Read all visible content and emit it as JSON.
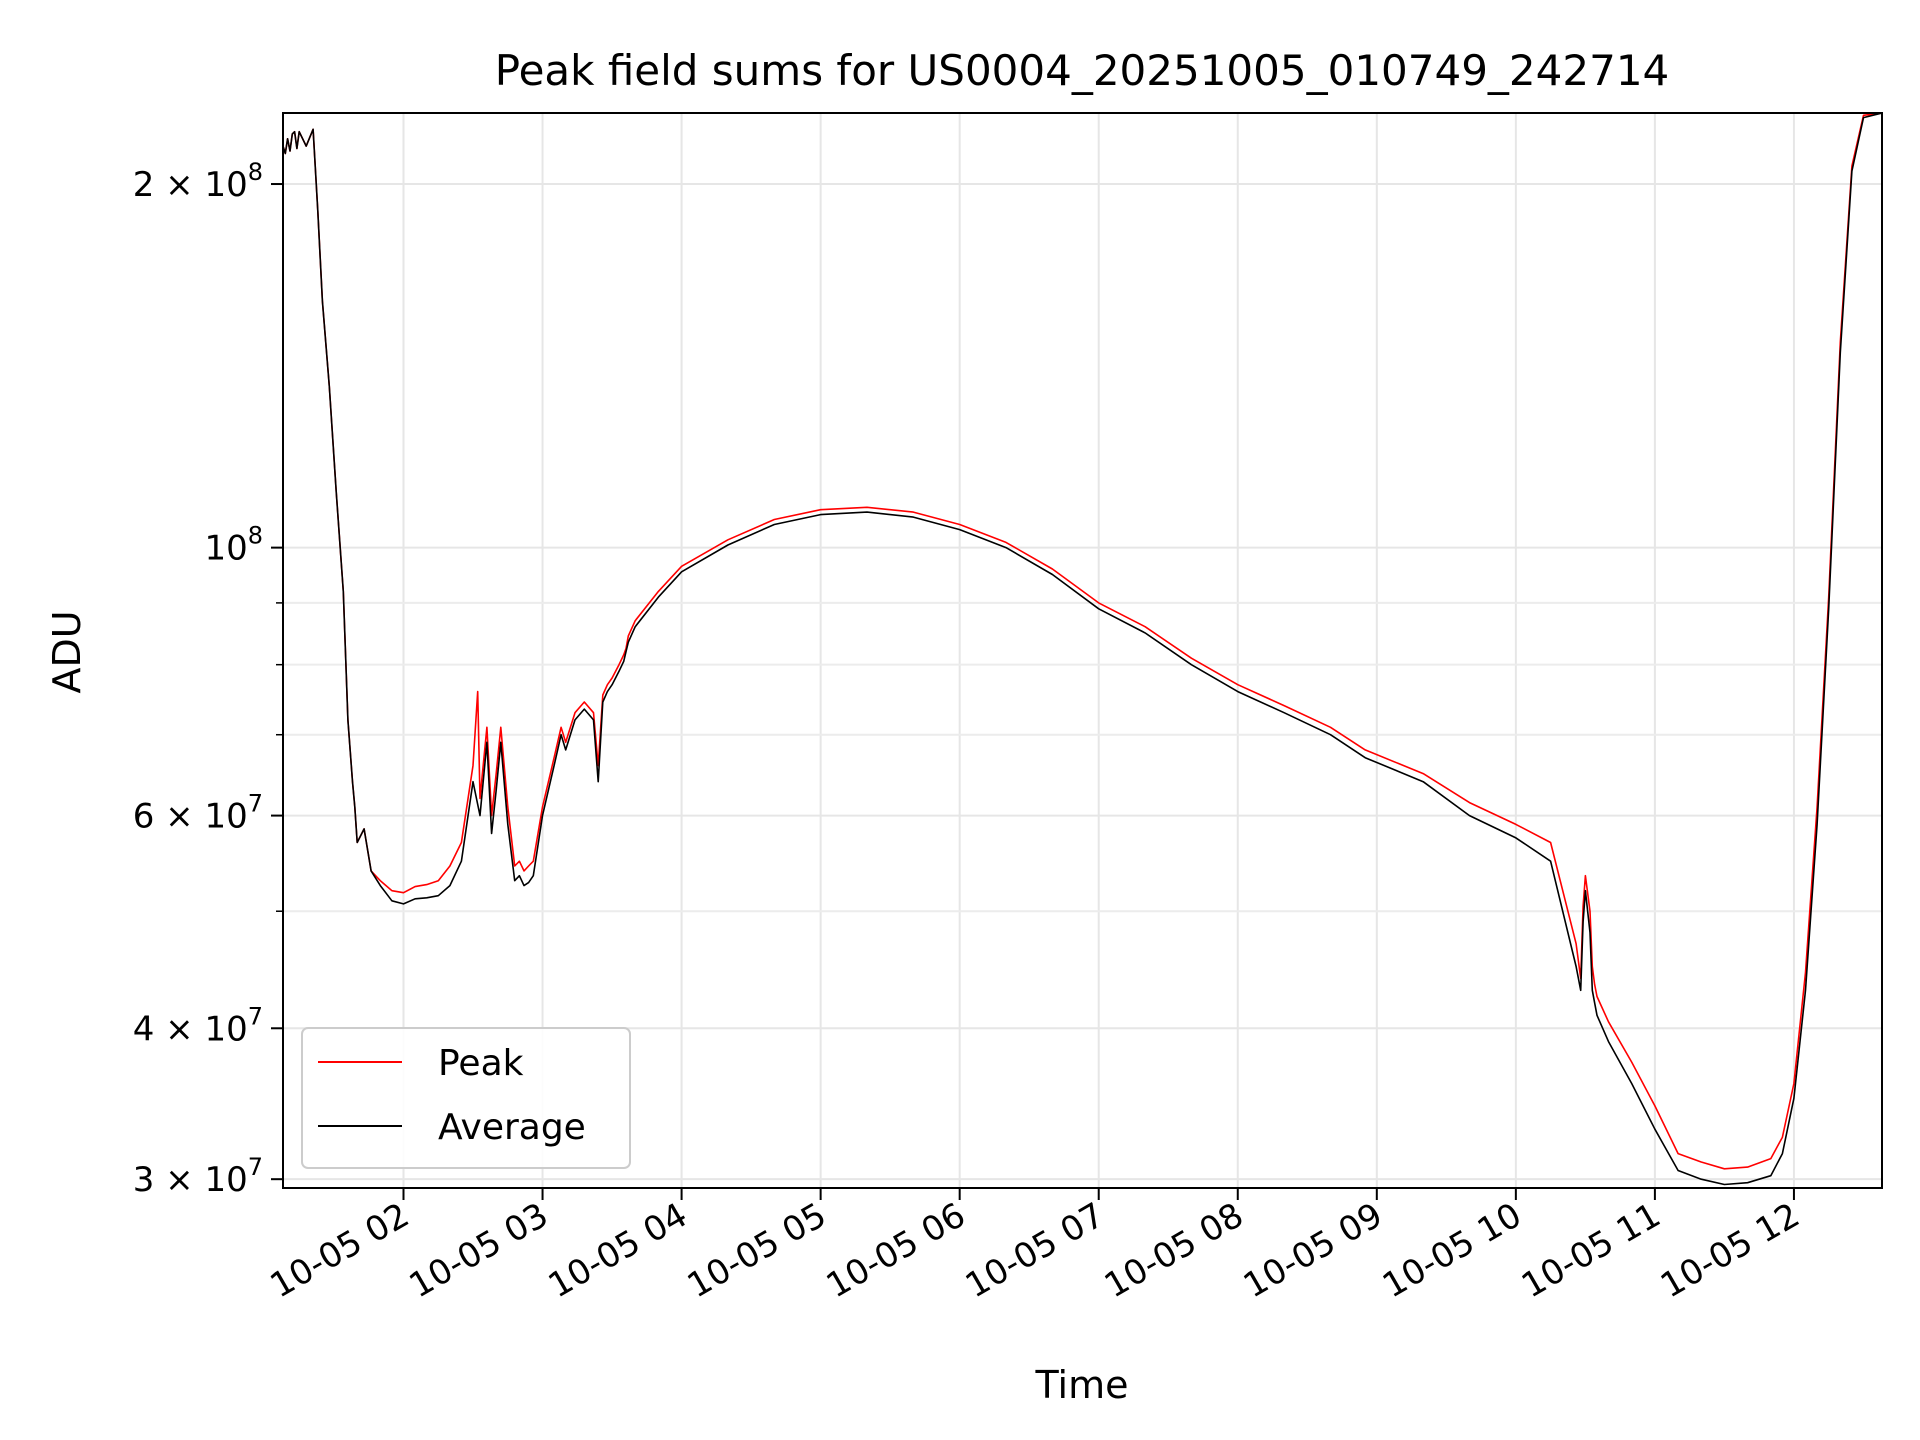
{
  "chart_data": {
    "type": "line",
    "title": "Peak field sums for US0004_20251005_010749_242714",
    "xlabel": "Time",
    "ylabel": "ADU",
    "y_scale": "log",
    "xlim": [
      "2025-10-05 01:08",
      "2025-10-05 12:38"
    ],
    "ylim": [
      29500000,
      229000000
    ],
    "grid": true,
    "legend": {
      "position": "lower-left",
      "entries": [
        "Peak",
        "Average"
      ]
    },
    "x_ticks": [
      "10-05 02",
      "10-05 03",
      "10-05 04",
      "10-05 05",
      "10-05 06",
      "10-05 07",
      "10-05 08",
      "10-05 09",
      "10-05 10",
      "10-05 11",
      "10-05 12"
    ],
    "y_major_ticks": [
      {
        "value": 200000000,
        "mant": "2",
        "exp": "8"
      },
      {
        "value": 100000000,
        "mant": "",
        "exp": "8"
      },
      {
        "value": 60000000,
        "mant": "6",
        "exp": "7"
      },
      {
        "value": 40000000,
        "mant": "4",
        "exp": "7"
      },
      {
        "value": 30000000,
        "mant": "3",
        "exp": "7"
      }
    ],
    "y_minor_grid": [
      50000000,
      70000000,
      80000000,
      90000000
    ],
    "colors": {
      "Peak": "#ff0000",
      "Average": "#000000"
    },
    "series": [
      {
        "name": "Average",
        "x": [
          "2025-10-05 01:08",
          "2025-10-05 01:09",
          "2025-10-05 01:10",
          "2025-10-05 01:11",
          "2025-10-05 01:12",
          "2025-10-05 01:13",
          "2025-10-05 01:14",
          "2025-10-05 01:15",
          "2025-10-05 01:18",
          "2025-10-05 01:21",
          "2025-10-05 01:23",
          "2025-10-05 01:25",
          "2025-10-05 01:28",
          "2025-10-05 01:31",
          "2025-10-05 01:34",
          "2025-10-05 01:36",
          "2025-10-05 01:38",
          "2025-10-05 01:39",
          "2025-10-05 01:40",
          "2025-10-05 01:43",
          "2025-10-05 01:46",
          "2025-10-05 01:50",
          "2025-10-05 01:55",
          "2025-10-05 02:00",
          "2025-10-05 02:05",
          "2025-10-05 02:10",
          "2025-10-05 02:15",
          "2025-10-05 02:20",
          "2025-10-05 02:25",
          "2025-10-05 02:30",
          "2025-10-05 02:33",
          "2025-10-05 02:36",
          "2025-10-05 02:38",
          "2025-10-05 02:40",
          "2025-10-05 02:42",
          "2025-10-05 02:45",
          "2025-10-05 02:48",
          "2025-10-05 02:50",
          "2025-10-05 02:52",
          "2025-10-05 02:54",
          "2025-10-05 02:56",
          "2025-10-05 03:00",
          "2025-10-05 03:05",
          "2025-10-05 03:08",
          "2025-10-05 03:10",
          "2025-10-05 03:14",
          "2025-10-05 03:18",
          "2025-10-05 03:22",
          "2025-10-05 03:24",
          "2025-10-05 03:26",
          "2025-10-05 03:28",
          "2025-10-05 03:30",
          "2025-10-05 03:33",
          "2025-10-05 03:35",
          "2025-10-05 03:36",
          "2025-10-05 03:37",
          "2025-10-05 03:40",
          "2025-10-05 03:50",
          "2025-10-05 04:00",
          "2025-10-05 04:20",
          "2025-10-05 04:40",
          "2025-10-05 05:00",
          "2025-10-05 05:20",
          "2025-10-05 05:40",
          "2025-10-05 06:00",
          "2025-10-05 06:20",
          "2025-10-05 06:40",
          "2025-10-05 07:00",
          "2025-10-05 07:20",
          "2025-10-05 07:40",
          "2025-10-05 08:00",
          "2025-10-05 08:20",
          "2025-10-05 08:40",
          "2025-10-05 08:55",
          "2025-10-05 09:20",
          "2025-10-05 09:40",
          "2025-10-05 10:00",
          "2025-10-05 10:15",
          "2025-10-05 10:26",
          "2025-10-05 10:28",
          "2025-10-05 10:29",
          "2025-10-05 10:30",
          "2025-10-05 10:32",
          "2025-10-05 10:33",
          "2025-10-05 10:34",
          "2025-10-05 10:35",
          "2025-10-05 10:40",
          "2025-10-05 10:50",
          "2025-10-05 11:00",
          "2025-10-05 11:10",
          "2025-10-05 11:20",
          "2025-10-05 11:30",
          "2025-10-05 11:40",
          "2025-10-05 11:50",
          "2025-10-05 11:55",
          "2025-10-05 12:00",
          "2025-10-05 12:05",
          "2025-10-05 12:10",
          "2025-10-05 12:15",
          "2025-10-05 12:20",
          "2025-10-05 12:25",
          "2025-10-05 12:30",
          "2025-10-05 12:38"
        ],
        "y": [
          215000000,
          212000000,
          218000000,
          213000000,
          220000000,
          221000000,
          214000000,
          221000000,
          215000000,
          222000000,
          190000000,
          160000000,
          136000000,
          111000000,
          92000000,
          72000000,
          64000000,
          61000000,
          57000000,
          58500000,
          54000000,
          52500000,
          51000000,
          50700000,
          51200000,
          51300000,
          51500000,
          52500000,
          55000000,
          64000000,
          60000000,
          69000000,
          58000000,
          63000000,
          69000000,
          59000000,
          53000000,
          53500000,
          52500000,
          52800000,
          53500000,
          60000000,
          66000000,
          70000000,
          68000000,
          72000000,
          73500000,
          72000000,
          64000000,
          74500000,
          76000000,
          77000000,
          79000000,
          80500000,
          82000000,
          83500000,
          86000000,
          91000000,
          95500000,
          100500000,
          104500000,
          106500000,
          107000000,
          106000000,
          103500000,
          100000000,
          95000000,
          89000000,
          85000000,
          80000000,
          76000000,
          73000000,
          70000000,
          67000000,
          64000000,
          60000000,
          57500000,
          55000000,
          45000000,
          43000000,
          49000000,
          52000000,
          48000000,
          43000000,
          42000000,
          41000000,
          39000000,
          36000000,
          33000000,
          30500000,
          30000000,
          29700000,
          29800000,
          30200000,
          31500000,
          35000000,
          43000000,
          59000000,
          89000000,
          145000000,
          205000000,
          227000000,
          229000000
        ]
      },
      {
        "name": "Peak",
        "x": [
          "2025-10-05 01:08",
          "2025-10-05 01:09",
          "2025-10-05 01:10",
          "2025-10-05 01:11",
          "2025-10-05 01:12",
          "2025-10-05 01:13",
          "2025-10-05 01:14",
          "2025-10-05 01:15",
          "2025-10-05 01:18",
          "2025-10-05 01:21",
          "2025-10-05 01:23",
          "2025-10-05 01:25",
          "2025-10-05 01:28",
          "2025-10-05 01:31",
          "2025-10-05 01:34",
          "2025-10-05 01:36",
          "2025-10-05 01:38",
          "2025-10-05 01:39",
          "2025-10-05 01:40",
          "2025-10-05 01:43",
          "2025-10-05 01:46",
          "2025-10-05 01:50",
          "2025-10-05 01:55",
          "2025-10-05 02:00",
          "2025-10-05 02:05",
          "2025-10-05 02:10",
          "2025-10-05 02:15",
          "2025-10-05 02:20",
          "2025-10-05 02:25",
          "2025-10-05 02:30",
          "2025-10-05 02:32",
          "2025-10-05 02:33",
          "2025-10-05 02:36",
          "2025-10-05 02:38",
          "2025-10-05 02:40",
          "2025-10-05 02:42",
          "2025-10-05 02:45",
          "2025-10-05 02:48",
          "2025-10-05 02:50",
          "2025-10-05 02:52",
          "2025-10-05 02:54",
          "2025-10-05 02:56",
          "2025-10-05 03:00",
          "2025-10-05 03:05",
          "2025-10-05 03:08",
          "2025-10-05 03:10",
          "2025-10-05 03:14",
          "2025-10-05 03:18",
          "2025-10-05 03:22",
          "2025-10-05 03:24",
          "2025-10-05 03:26",
          "2025-10-05 03:28",
          "2025-10-05 03:30",
          "2025-10-05 03:33",
          "2025-10-05 03:35",
          "2025-10-05 03:36",
          "2025-10-05 03:37",
          "2025-10-05 03:40",
          "2025-10-05 03:50",
          "2025-10-05 04:00",
          "2025-10-05 04:20",
          "2025-10-05 04:40",
          "2025-10-05 05:00",
          "2025-10-05 05:20",
          "2025-10-05 05:40",
          "2025-10-05 06:00",
          "2025-10-05 06:20",
          "2025-10-05 06:40",
          "2025-10-05 07:00",
          "2025-10-05 07:20",
          "2025-10-05 07:40",
          "2025-10-05 08:00",
          "2025-10-05 08:20",
          "2025-10-05 08:40",
          "2025-10-05 08:55",
          "2025-10-05 09:20",
          "2025-10-05 09:40",
          "2025-10-05 10:00",
          "2025-10-05 10:15",
          "2025-10-05 10:26",
          "2025-10-05 10:28",
          "2025-10-05 10:29",
          "2025-10-05 10:30",
          "2025-10-05 10:32",
          "2025-10-05 10:33",
          "2025-10-05 10:34",
          "2025-10-05 10:35",
          "2025-10-05 10:40",
          "2025-10-05 10:50",
          "2025-10-05 11:00",
          "2025-10-05 11:10",
          "2025-10-05 11:20",
          "2025-10-05 11:30",
          "2025-10-05 11:40",
          "2025-10-05 11:50",
          "2025-10-05 11:55",
          "2025-10-05 12:00",
          "2025-10-05 12:05",
          "2025-10-05 12:10",
          "2025-10-05 12:15",
          "2025-10-05 12:20",
          "2025-10-05 12:25",
          "2025-10-05 12:30",
          "2025-10-05 12:38"
        ],
        "y": [
          215000000,
          212000000,
          218000000,
          213000000,
          220000000,
          221000000,
          214000000,
          221000000,
          215000000,
          222000000,
          190000000,
          160000000,
          136000000,
          111000000,
          92000000,
          72000000,
          64000000,
          61000000,
          57000000,
          58500000,
          54000000,
          53000000,
          52000000,
          51800000,
          52400000,
          52600000,
          53000000,
          54500000,
          57000000,
          66000000,
          76000000,
          62000000,
          71000000,
          60000000,
          65000000,
          71000000,
          61000000,
          54500000,
          55000000,
          54000000,
          54500000,
          55000000,
          61000000,
          67000000,
          71000000,
          69000000,
          73000000,
          74500000,
          73000000,
          66000000,
          75500000,
          77000000,
          78000000,
          80000000,
          81500000,
          82500000,
          84500000,
          87000000,
          92000000,
          96500000,
          101500000,
          105500000,
          107500000,
          108000000,
          107000000,
          104500000,
          101000000,
          96000000,
          90000000,
          86000000,
          81000000,
          77000000,
          74000000,
          71000000,
          68000000,
          65000000,
          61500000,
          59000000,
          57000000,
          47000000,
          44000000,
          50500000,
          53500000,
          50000000,
          45000000,
          43500000,
          42500000,
          40500000,
          37500000,
          34500000,
          31500000,
          31000000,
          30600000,
          30700000,
          31200000,
          32500000,
          36000000,
          44500000,
          61000000,
          91000000,
          148000000,
          207000000,
          228000000,
          229000000
        ]
      }
    ]
  }
}
